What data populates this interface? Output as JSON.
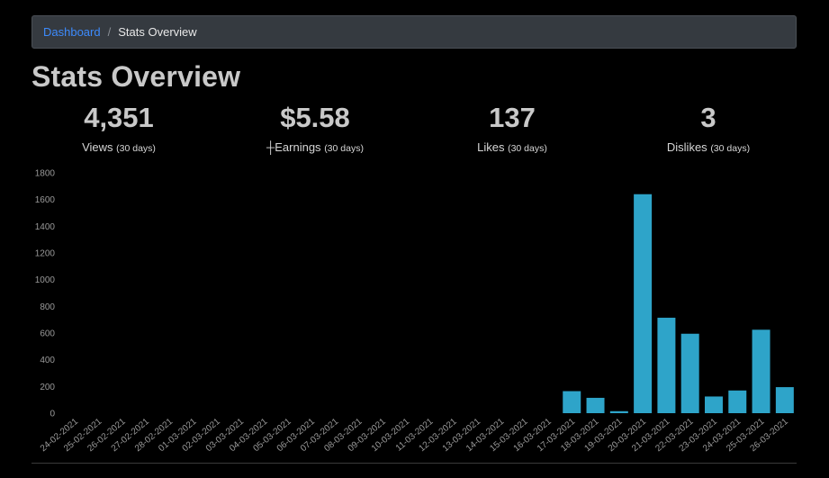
{
  "breadcrumb": {
    "home_label": "Dashboard",
    "separator": "/",
    "current_label": "Stats Overview"
  },
  "page": {
    "title": "Stats Overview"
  },
  "stats": [
    {
      "value": "4,351",
      "label": "Views",
      "period": "(30 days)"
    },
    {
      "value": "$5.58",
      "label": "┼Earnings",
      "period": "(30 days)"
    },
    {
      "value": "137",
      "label": "Likes",
      "period": "(30 days)"
    },
    {
      "value": "3",
      "label": "Dislikes",
      "period": "(30 days)"
    }
  ],
  "colors": {
    "bar": "#2ea4c9",
    "link": "#3d8bfd",
    "breadcrumb_bg": "#353a40"
  },
  "chart_data": {
    "type": "bar",
    "title": "",
    "xlabel": "",
    "ylabel": "",
    "ylim": [
      0,
      1800
    ],
    "yticks": [
      0,
      200,
      400,
      600,
      800,
      1000,
      1200,
      1400,
      1600,
      1800
    ],
    "grid": false,
    "categories": [
      "24-02-2021",
      "25-02-2021",
      "26-02-2021",
      "27-02-2021",
      "28-02-2021",
      "01-03-2021",
      "02-03-2021",
      "03-03-2021",
      "04-03-2021",
      "05-03-2021",
      "06-03-2021",
      "07-03-2021",
      "08-03-2021",
      "09-03-2021",
      "10-03-2021",
      "11-03-2021",
      "12-03-2021",
      "13-03-2021",
      "14-03-2021",
      "15-03-2021",
      "16-03-2021",
      "17-03-2021",
      "18-03-2021",
      "19-03-2021",
      "20-03-2021",
      "21-03-2021",
      "22-03-2021",
      "23-03-2021",
      "24-03-2021",
      "25-03-2021",
      "26-03-2021"
    ],
    "values": [
      0,
      0,
      0,
      0,
      0,
      0,
      0,
      0,
      0,
      0,
      0,
      0,
      0,
      0,
      0,
      0,
      0,
      0,
      0,
      0,
      0,
      165,
      115,
      15,
      1640,
      715,
      595,
      125,
      170,
      625,
      195
    ]
  }
}
